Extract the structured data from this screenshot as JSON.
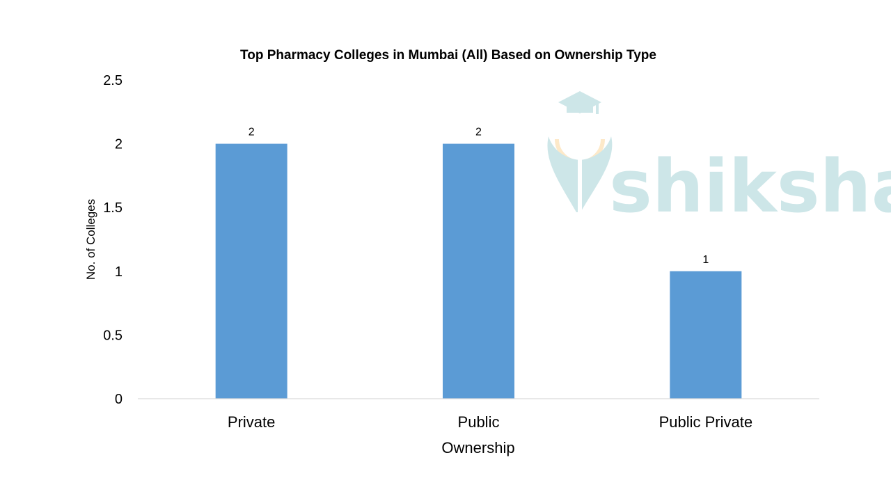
{
  "chart_data": {
    "type": "bar",
    "title": "Top Pharmacy Colleges in Mumbai (All) Based on Ownership Type",
    "xlabel": "Ownership",
    "ylabel": "No. of Colleges",
    "categories": [
      "Private",
      "Public",
      "Public Private"
    ],
    "values": [
      2,
      2,
      1
    ],
    "data_labels": [
      "2",
      "2",
      "1"
    ],
    "ylim": [
      0,
      2.5
    ],
    "yticks": [
      0,
      0.5,
      1,
      1.5,
      2,
      2.5
    ],
    "ytick_labels": [
      "0",
      "0.5",
      "1",
      "1.5",
      "2",
      "2.5"
    ],
    "grid": false,
    "legend": "none",
    "bar_color": "#5b9bd5",
    "axis_color": "#d9d9d9"
  },
  "watermark": {
    "text": "shiksha",
    "color": "#cde6e8",
    "accent_color": "#fde9c9",
    "icon": "graduation-cap-pen-nib-icon"
  }
}
